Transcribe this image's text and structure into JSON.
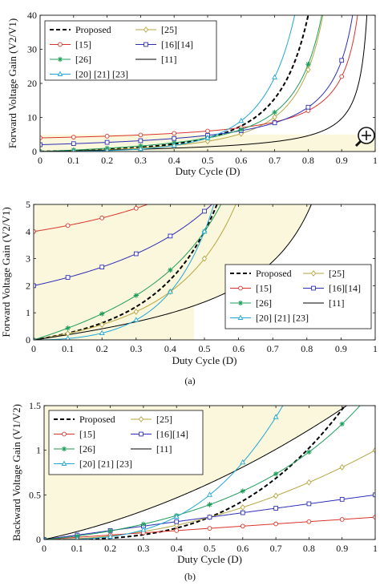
{
  "chart_data": [
    {
      "type": "line",
      "title": "",
      "xlabel": "Duty Cycle (D)",
      "ylabel": "Forward Voltage Gain (V2/V1)",
      "xlim": [
        0,
        1
      ],
      "ylim": [
        0,
        40
      ],
      "xticks": [
        "0",
        "0.1",
        "0.2",
        "0.3",
        "0.4",
        "0.5",
        "0.6",
        "0.7",
        "0.8",
        "0.9",
        "1"
      ],
      "yticks": [
        "0",
        "10",
        "20",
        "30",
        "40"
      ],
      "legend": "top-left",
      "zoom_glyph": "magnifier-plus-icon",
      "series": [
        {
          "name": "Proposed",
          "color": "#000000",
          "style": "dashed",
          "marker": "none",
          "formula": "prop"
        },
        {
          "name": "[25]",
          "color": "#b6a642",
          "style": "solid",
          "marker": "diamond",
          "formula": "r25"
        },
        {
          "name": "[15]",
          "color": "#d9342b",
          "style": "solid",
          "marker": "circle",
          "formula": "r15"
        },
        {
          "name": "[16][14]",
          "color": "#2e2eb8",
          "style": "solid",
          "marker": "square",
          "formula": "r16"
        },
        {
          "name": "[26]",
          "color": "#1f9e5b",
          "style": "solid",
          "marker": "star",
          "formula": "r26"
        },
        {
          "name": "[11]",
          "color": "#000000",
          "style": "solid",
          "marker": "none",
          "formula": "r11"
        },
        {
          "name": "[20] [21] [23]",
          "color": "#21a7d6",
          "style": "solid",
          "marker": "triangle",
          "formula": "r20"
        }
      ]
    },
    {
      "type": "line",
      "title": "",
      "xlabel": "Duty Cycle (D)",
      "ylabel": "Forward Voltage Gain (V2/V1)",
      "xlim": [
        0,
        1
      ],
      "ylim": [
        0,
        5
      ],
      "xticks": [
        "0",
        "0.1",
        "0.2",
        "0.3",
        "0.4",
        "0.5",
        "0.6",
        "0.7",
        "0.8",
        "0.9",
        "1"
      ],
      "yticks": [
        "0",
        "1",
        "2",
        "3",
        "4",
        "5"
      ],
      "legend": "bottom-right",
      "caption": "(a)",
      "series": [
        {
          "name": "Proposed",
          "color": "#000000",
          "style": "dashed",
          "marker": "none",
          "formula": "prop"
        },
        {
          "name": "[25]",
          "color": "#b6a642",
          "style": "solid",
          "marker": "diamond",
          "formula": "r25"
        },
        {
          "name": "[15]",
          "color": "#d9342b",
          "style": "solid",
          "marker": "circle",
          "formula": "r15"
        },
        {
          "name": "[16][14]",
          "color": "#2e2eb8",
          "style": "solid",
          "marker": "square",
          "formula": "r16"
        },
        {
          "name": "[26]",
          "color": "#1f9e5b",
          "style": "solid",
          "marker": "star",
          "formula": "r26"
        },
        {
          "name": "[11]",
          "color": "#000000",
          "style": "solid",
          "marker": "none",
          "formula": "r11"
        },
        {
          "name": "[20] [21] [23]",
          "color": "#21a7d6",
          "style": "solid",
          "marker": "triangle",
          "formula": "r20"
        }
      ]
    },
    {
      "type": "line",
      "title": "",
      "xlabel": "Duty Cycle (D)",
      "ylabel": "Backward Voltage Gain (V1/V2)",
      "xlim": [
        0,
        1
      ],
      "ylim": [
        0,
        1.5
      ],
      "xticks": [
        "0",
        "0.1",
        "0.2",
        "0.3",
        "0.4",
        "0.5",
        "0.6",
        "0.7",
        "0.8",
        "0.9",
        "1"
      ],
      "yticks": [
        "0",
        "0.5",
        "1",
        "1.5"
      ],
      "legend": "top-left",
      "caption": "(b)",
      "series": [
        {
          "name": "Proposed",
          "color": "#000000",
          "style": "dashed",
          "marker": "none",
          "formula": "bprop"
        },
        {
          "name": "[25]",
          "color": "#b6a642",
          "style": "solid",
          "marker": "diamond",
          "formula": "b25"
        },
        {
          "name": "[15]",
          "color": "#d9342b",
          "style": "solid",
          "marker": "circle",
          "formula": "b15"
        },
        {
          "name": "[16][14]",
          "color": "#2e2eb8",
          "style": "solid",
          "marker": "square",
          "formula": "b16"
        },
        {
          "name": "[26]",
          "color": "#1f9e5b",
          "style": "solid",
          "marker": "star",
          "formula": "b26"
        },
        {
          "name": "[11]",
          "color": "#000000",
          "style": "solid",
          "marker": "none",
          "formula": "b11"
        },
        {
          "name": "[20] [21] [23]",
          "color": "#21a7d6",
          "style": "solid",
          "marker": "triangle",
          "formula": "b20"
        }
      ]
    }
  ]
}
